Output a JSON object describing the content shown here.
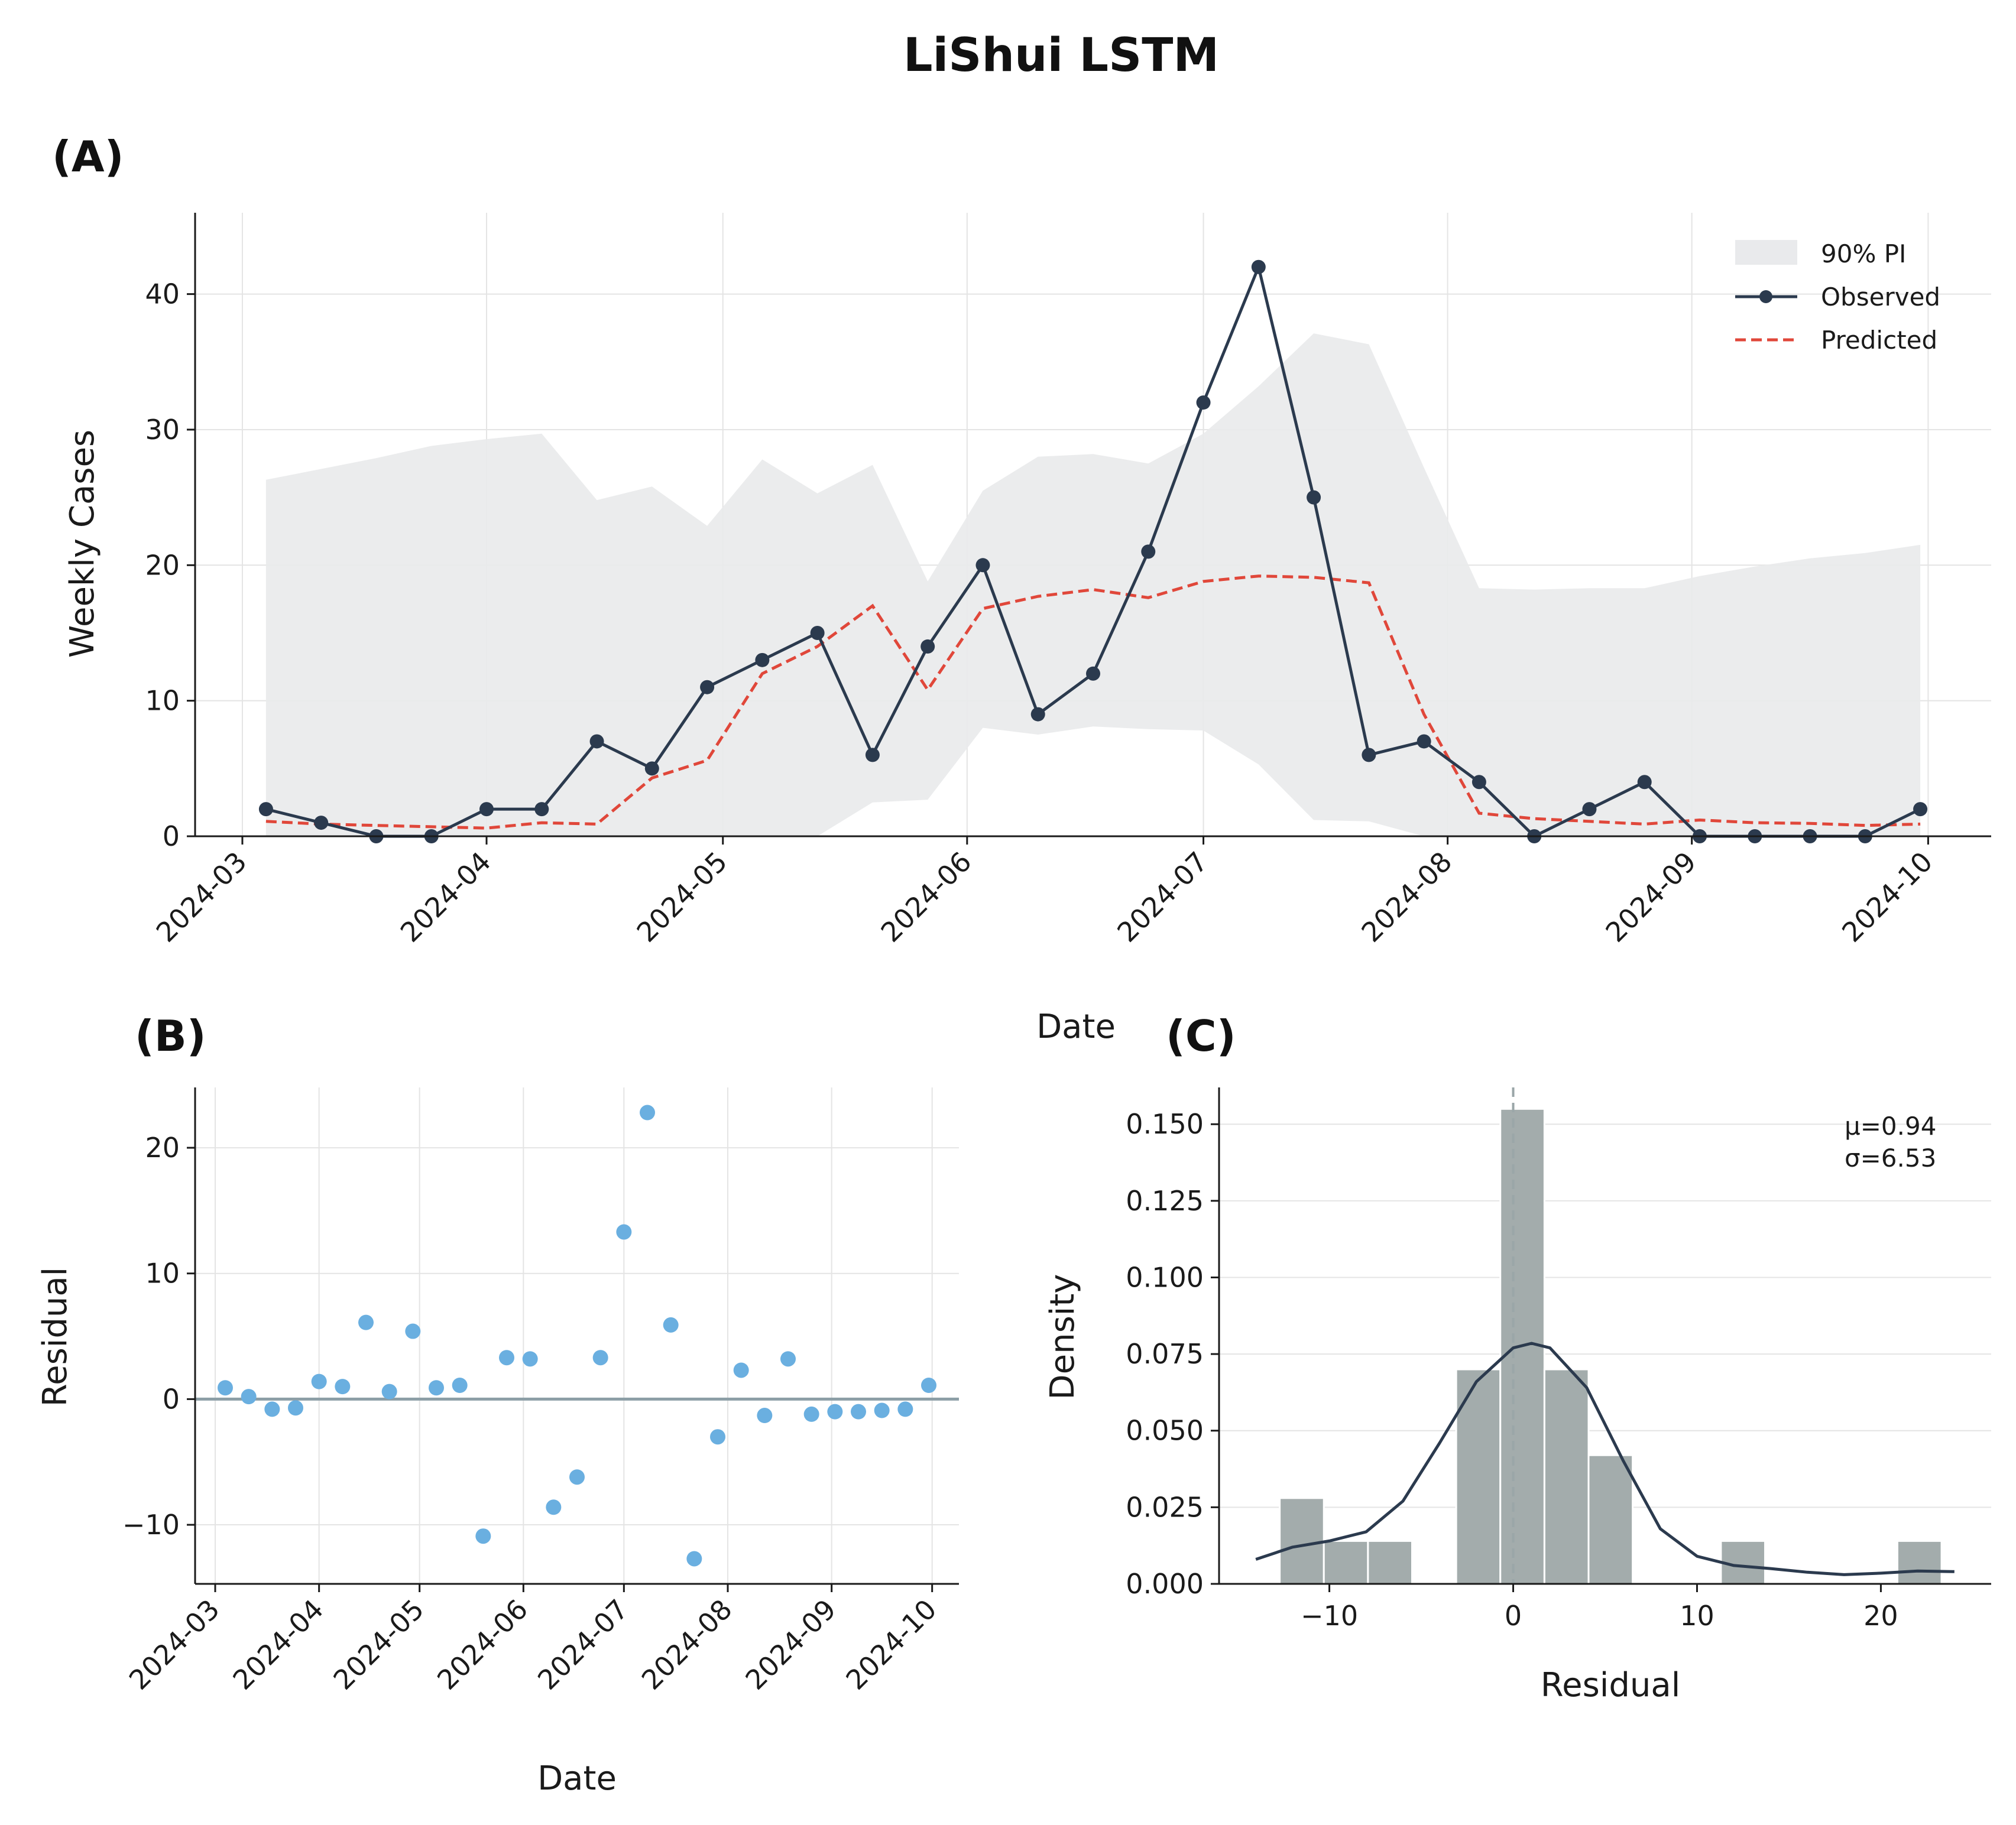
{
  "title": "LiShui LSTM",
  "chart_data": [
    {
      "panel": "(A)",
      "type": "line",
      "xlabel": "Date",
      "ylabel": "Weekly Cases",
      "ylim": [
        0,
        46
      ],
      "yticks": [
        0,
        10,
        20,
        30,
        40
      ],
      "xticks": [
        "2024-03",
        "2024-04",
        "2024-05",
        "2024-06",
        "2024-07",
        "2024-08",
        "2024-09",
        "2024-10"
      ],
      "legend": [
        "90% PI",
        "Observed",
        "Predicted"
      ],
      "legend_position": "top-right",
      "x": [
        "2024-03-04",
        "2024-03-11",
        "2024-03-18",
        "2024-03-25",
        "2024-04-01",
        "2024-04-08",
        "2024-04-15",
        "2024-04-22",
        "2024-04-29",
        "2024-05-06",
        "2024-05-13",
        "2024-05-20",
        "2024-05-27",
        "2024-06-03",
        "2024-06-10",
        "2024-06-17",
        "2024-06-24",
        "2024-07-01",
        "2024-07-08",
        "2024-07-15",
        "2024-07-22",
        "2024-07-29",
        "2024-08-05",
        "2024-08-12",
        "2024-08-19",
        "2024-08-26",
        "2024-09-02",
        "2024-09-09",
        "2024-09-16",
        "2024-09-23",
        "2024-09-30"
      ],
      "observed": [
        2,
        1,
        0,
        0,
        2,
        2,
        7,
        5,
        11,
        13,
        15,
        6,
        14,
        20,
        9,
        12,
        21,
        32,
        42,
        25,
        6,
        7,
        4,
        0,
        2,
        4,
        0,
        0,
        0,
        0,
        2
      ],
      "predicted": [
        1.1,
        0.9,
        0.8,
        0.7,
        0.6,
        1.0,
        0.9,
        4.3,
        5.6,
        12.0,
        14.0,
        17.0,
        10.8,
        16.8,
        17.7,
        18.2,
        17.6,
        18.8,
        19.2,
        19.1,
        18.7,
        9.0,
        1.7,
        1.3,
        1.1,
        0.9,
        1.2,
        1.0,
        0.95,
        0.8,
        0.9
      ],
      "pi_upper": [
        26.3,
        27.1,
        27.9,
        28.8,
        29.3,
        29.7,
        24.8,
        25.8,
        22.9,
        27.8,
        25.3,
        27.4,
        18.8,
        25.5,
        28.0,
        28.2,
        27.5,
        29.7,
        33.2,
        37.1,
        36.3,
        27.2,
        18.3,
        18.2,
        18.3,
        18.3,
        19.2,
        19.9,
        20.5,
        20.9,
        21.5
      ],
      "pi_lower": [
        0,
        0,
        0,
        0,
        0,
        0,
        0,
        0,
        0,
        0,
        0,
        2.5,
        2.7,
        8.0,
        7.5,
        8.1,
        7.9,
        7.8,
        5.3,
        1.2,
        1.1,
        0,
        0,
        0,
        0,
        0,
        0,
        0,
        0,
        0,
        0
      ]
    },
    {
      "panel": "(B)",
      "type": "scatter",
      "xlabel": "Date",
      "ylabel": "Residual",
      "ylim": [
        -14.7,
        24.8
      ],
      "yticks": [
        -10,
        0,
        10,
        20
      ],
      "xticks": [
        "2024-03",
        "2024-04",
        "2024-05",
        "2024-06",
        "2024-07",
        "2024-08",
        "2024-09",
        "2024-10"
      ],
      "reference_line": 0,
      "residual": [
        0.9,
        0.2,
        -0.8,
        -0.7,
        1.4,
        1.0,
        6.1,
        0.6,
        5.4,
        0.9,
        1.1,
        -10.9,
        3.3,
        3.2,
        -8.6,
        -6.2,
        3.3,
        13.3,
        22.8,
        5.9,
        -12.7,
        -3.0,
        2.3,
        -1.3,
        3.2,
        -1.2,
        -1.0,
        -1.0,
        -0.9,
        -0.8,
        1.1
      ]
    },
    {
      "panel": "(C)",
      "type": "histogram",
      "xlabel": "Residual",
      "ylabel": "Density",
      "xlim": [
        -16,
        26
      ],
      "ylim": [
        0,
        0.162
      ],
      "xticks": [
        -10,
        0,
        10,
        20
      ],
      "yticks": [
        "0.000",
        "0.025",
        "0.050",
        "0.075",
        "0.100",
        "0.125",
        "0.150"
      ],
      "bin_edges": [
        -12.7,
        -10.3,
        -7.9,
        -5.5,
        -3.1,
        -0.7,
        1.7,
        4.1,
        6.5,
        8.9,
        11.3,
        13.7,
        16.1,
        18.5,
        20.9,
        23.3
      ],
      "densities": [
        0.028,
        0.014,
        0.014,
        0,
        0.07,
        0.155,
        0.07,
        0.042,
        0,
        0,
        0.014,
        0,
        0,
        0,
        0.014
      ],
      "kde": [
        [
          -14,
          0.008
        ],
        [
          -12,
          0.012
        ],
        [
          -10,
          0.014
        ],
        [
          -8,
          0.017
        ],
        [
          -6,
          0.027
        ],
        [
          -4,
          0.046
        ],
        [
          -2,
          0.066
        ],
        [
          0,
          0.077
        ],
        [
          1,
          0.0785
        ],
        [
          2,
          0.077
        ],
        [
          4,
          0.064
        ],
        [
          6,
          0.04
        ],
        [
          8,
          0.018
        ],
        [
          10,
          0.009
        ],
        [
          12,
          0.006
        ],
        [
          14,
          0.005
        ],
        [
          16,
          0.0038
        ],
        [
          18,
          0.003
        ],
        [
          20,
          0.0035
        ],
        [
          22,
          0.0042
        ],
        [
          24,
          0.004
        ]
      ],
      "mean_line": 0,
      "stats": [
        "μ=0.94",
        "σ=6.53"
      ]
    }
  ]
}
